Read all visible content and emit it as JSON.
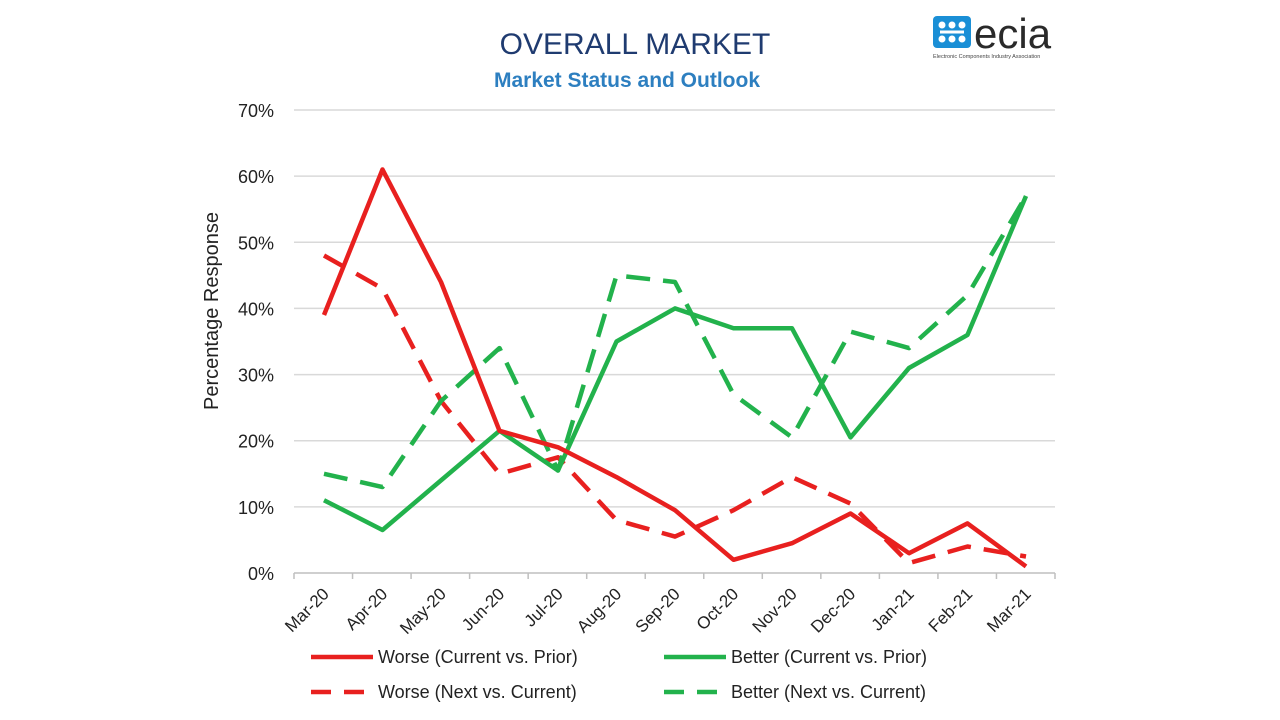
{
  "logo": {
    "text": "ecia",
    "subtext": "Electronic Components Industry Association",
    "color": "#1a8fd6"
  },
  "chart_data": {
    "type": "line",
    "title": "OVERALL MARKET",
    "subtitle": "Market Status and Outlook",
    "xlabel": "",
    "ylabel": "Percentage Response",
    "ylim": [
      0,
      70
    ],
    "yticks": [
      0,
      10,
      20,
      30,
      40,
      50,
      60,
      70
    ],
    "ytick_suffix": "%",
    "grid": true,
    "legend_position": "bottom",
    "categories": [
      "Mar-20",
      "Apr-20",
      "May-20",
      "Jun-20",
      "Jul-20",
      "Aug-20",
      "Sep-20",
      "Oct-20",
      "Nov-20",
      "Dec-20",
      "Jan-21",
      "Feb-21",
      "Mar-21"
    ],
    "series": [
      {
        "name": "Worse (Current vs. Prior)",
        "color": "#e8201f",
        "dash": "solid",
        "values": [
          39,
          61,
          44,
          21.5,
          19,
          14.5,
          9.5,
          2,
          4.5,
          9,
          3,
          7.5,
          1
        ]
      },
      {
        "name": "Better (Current vs. Prior)",
        "color": "#22b24c",
        "dash": "solid",
        "values": [
          11,
          6.5,
          14,
          21.5,
          15.5,
          35,
          40,
          37,
          37,
          20.5,
          31,
          36,
          57
        ]
      },
      {
        "name": "Worse (Next vs. Current)",
        "color": "#e8201f",
        "dash": "dashed",
        "values": [
          48,
          43,
          26,
          15,
          17.5,
          8,
          5.5,
          9.5,
          14.5,
          10.5,
          1.5,
          4,
          2.5
        ]
      },
      {
        "name": "Better (Next vs. Current)",
        "color": "#22b24c",
        "dash": "dashed",
        "values": [
          15,
          13,
          26,
          34,
          15.5,
          45,
          44,
          27,
          20.5,
          36.5,
          34,
          42,
          57
        ]
      }
    ]
  }
}
